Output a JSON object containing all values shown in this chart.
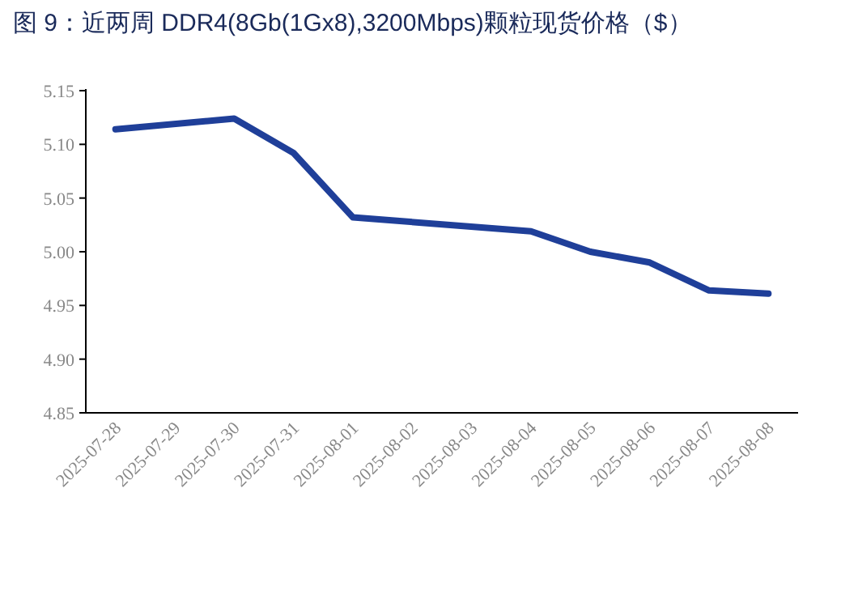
{
  "chart_data": {
    "type": "line",
    "title": "图 9：近两周 DDR4(8Gb(1Gx8),3200Mbps)颗粒现货价格（$）",
    "x": [
      "2025-07-28",
      "2025-07-30",
      "2025-07-31",
      "2025-08-01",
      "2025-08-04",
      "2025-08-05",
      "2025-08-06",
      "2025-08-07",
      "2025-08-08"
    ],
    "series": [
      {
        "color": "#1f3f99",
        "values": [
          5.114,
          5.124,
          5.092,
          5.032,
          5.019,
          5.0,
          4.99,
          4.964,
          4.961
        ]
      }
    ],
    "xlim": [
      "2025-07-27T12:00",
      "2025-08-08T12:00"
    ],
    "xticks": [
      "2025-07-28",
      "2025-07-29",
      "2025-07-30",
      "2025-07-31",
      "2025-08-01",
      "2025-08-02",
      "2025-08-03",
      "2025-08-04",
      "2025-08-05",
      "2025-08-06",
      "2025-08-07",
      "2025-08-08"
    ],
    "ylim": [
      4.85,
      5.15
    ],
    "yticks": [
      {
        "value": 4.85,
        "label": "4.85"
      },
      {
        "value": 4.9,
        "label": "4.90"
      },
      {
        "value": 4.95,
        "label": "4.95"
      },
      {
        "value": 5.0,
        "label": "5.00"
      },
      {
        "value": 5.05,
        "label": "5.05"
      },
      {
        "value": 5.1,
        "label": "5.10"
      },
      {
        "value": 5.15,
        "label": "5.15"
      }
    ],
    "grid": false,
    "marker": "none",
    "line_style": "solid"
  }
}
